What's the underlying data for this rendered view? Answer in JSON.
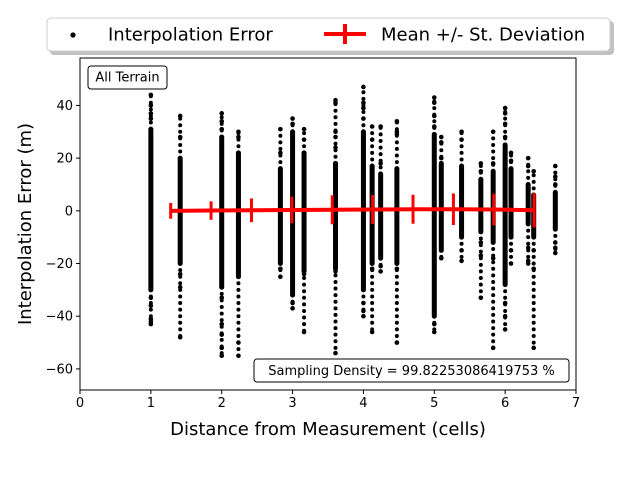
{
  "chart_data": {
    "type": "scatter",
    "xlabel": "Distance from Measurement (cells)",
    "ylabel": "Interpolation Error (m)",
    "xlim": [
      0,
      7
    ],
    "ylim": [
      -68,
      58
    ],
    "xticks": [
      0,
      1,
      2,
      3,
      4,
      5,
      6,
      7
    ],
    "yticks": [
      -60,
      -40,
      -20,
      0,
      20,
      40
    ],
    "legend_position": "top-center",
    "annotations": {
      "top_left": "All Terrain",
      "bottom_right": "Sampling Density = 99.82253086419753 %"
    },
    "series": [
      {
        "name": "Interpolation Error",
        "kind": "scatter",
        "color": "#000000",
        "columns": [
          {
            "x": 1.0,
            "min": -43,
            "max": 44,
            "dense": [
              -30,
              31
            ],
            "outliers": [
              44,
              40,
              37,
              35,
              -33,
              -36,
              -41,
              -42,
              -43
            ]
          },
          {
            "x": 1.414,
            "min": -48,
            "max": 36,
            "dense": [
              -20,
              20
            ],
            "outliers": [
              36,
              28,
              -24,
              -29,
              -48
            ]
          },
          {
            "x": 2.0,
            "min": -55,
            "max": 37,
            "dense": [
              -29,
              28
            ],
            "outliers": [
              37,
              34,
              31,
              -33,
              -43,
              -47,
              -52,
              -55
            ]
          },
          {
            "x": 2.236,
            "min": -55,
            "max": 30,
            "dense": [
              -25,
              22
            ],
            "outliers": [
              30,
              28,
              -25,
              -50,
              -55
            ]
          },
          {
            "x": 2.828,
            "min": -25,
            "max": 31,
            "dense": [
              -20,
              16
            ],
            "outliers": [
              31,
              22,
              -22,
              -25
            ]
          },
          {
            "x": 3.0,
            "min": -37,
            "max": 35,
            "dense": [
              -32,
              30
            ],
            "outliers": [
              35,
              33,
              -35,
              -37
            ]
          },
          {
            "x": 3.162,
            "min": -46,
            "max": 31,
            "dense": [
              -23,
              22
            ],
            "outliers": [
              31,
              27,
              -24,
              -46
            ]
          },
          {
            "x": 3.606,
            "min": -54,
            "max": 42,
            "dense": [
              -22,
              18
            ],
            "outliers": [
              42,
              41,
              30,
              28,
              24,
              -23,
              -54
            ]
          },
          {
            "x": 4.0,
            "min": -40,
            "max": 47,
            "dense": [
              -30,
              30
            ],
            "outliers": [
              47,
              41,
              39,
              35,
              -35,
              -38,
              -40
            ]
          },
          {
            "x": 4.123,
            "min": -46,
            "max": 32,
            "dense": [
              -20,
              17
            ],
            "outliers": [
              32,
              27,
              -22,
              -46
            ]
          },
          {
            "x": 4.243,
            "min": -23,
            "max": 32,
            "dense": [
              -18,
              14
            ],
            "outliers": [
              32,
              18,
              -21,
              -23
            ]
          },
          {
            "x": 4.472,
            "min": -50,
            "max": 34,
            "dense": [
              -20,
              16
            ],
            "outliers": [
              34,
              30,
              29,
              -22,
              -50
            ]
          },
          {
            "x": 5.0,
            "min": -46,
            "max": 43,
            "dense": [
              -40,
              29
            ],
            "outliers": [
              43,
              41,
              36,
              32,
              -43,
              -46
            ]
          },
          {
            "x": 5.099,
            "min": -18,
            "max": 28,
            "dense": [
              -15,
              18
            ],
            "outliers": [
              28,
              26,
              20,
              -18
            ]
          },
          {
            "x": 5.385,
            "min": -19,
            "max": 30,
            "dense": [
              -10,
              17
            ],
            "outliers": [
              30,
              27,
              -15,
              -19
            ]
          },
          {
            "x": 5.657,
            "min": -33,
            "max": 18,
            "dense": [
              -8,
              12
            ],
            "outliers": [
              18,
              15,
              -12,
              -17,
              -33
            ]
          },
          {
            "x": 5.831,
            "min": -52,
            "max": 30,
            "dense": [
              -12,
              15
            ],
            "outliers": [
              30,
              18,
              -18,
              -52
            ]
          },
          {
            "x": 6.0,
            "min": -45,
            "max": 39,
            "dense": [
              -28,
              25
            ],
            "outliers": [
              39,
              37,
              33,
              28,
              -35,
              -40,
              -45
            ]
          },
          {
            "x": 6.083,
            "min": -20,
            "max": 22,
            "dense": [
              -10,
              16
            ],
            "outliers": [
              22,
              19,
              -15,
              -20
            ]
          },
          {
            "x": 6.325,
            "min": -20,
            "max": 20,
            "dense": [
              -5,
              10
            ],
            "outliers": [
              20,
              17,
              -14,
              -19,
              -20
            ]
          },
          {
            "x": 6.403,
            "min": -52,
            "max": 15,
            "dense": [
              -10,
              6
            ],
            "outliers": [
              15,
              -15,
              -22,
              -52
            ]
          },
          {
            "x": 6.708,
            "min": -16,
            "max": 17,
            "dense": [
              -7,
              7
            ],
            "outliers": [
              17,
              13,
              10,
              -12,
              -14,
              -16
            ]
          }
        ]
      },
      {
        "name": "Mean +/- St. Deviation",
        "kind": "errorbar",
        "color": "#ff0000",
        "points": [
          {
            "x": 1.28,
            "mean": 0.0,
            "sd": 3.0
          },
          {
            "x": 1.85,
            "mean": 0.1,
            "sd": 3.5
          },
          {
            "x": 2.42,
            "mean": 0.2,
            "sd": 4.5
          },
          {
            "x": 2.99,
            "mean": 0.3,
            "sd": 5.0
          },
          {
            "x": 3.56,
            "mean": 0.4,
            "sd": 5.5
          },
          {
            "x": 4.13,
            "mean": 0.5,
            "sd": 5.5
          },
          {
            "x": 4.7,
            "mean": 0.6,
            "sd": 5.5
          },
          {
            "x": 5.27,
            "mean": 0.6,
            "sd": 6.0
          },
          {
            "x": 5.84,
            "mean": 0.5,
            "sd": 6.0
          },
          {
            "x": 6.41,
            "mean": 0.2,
            "sd": 6.5
          }
        ]
      }
    ]
  }
}
